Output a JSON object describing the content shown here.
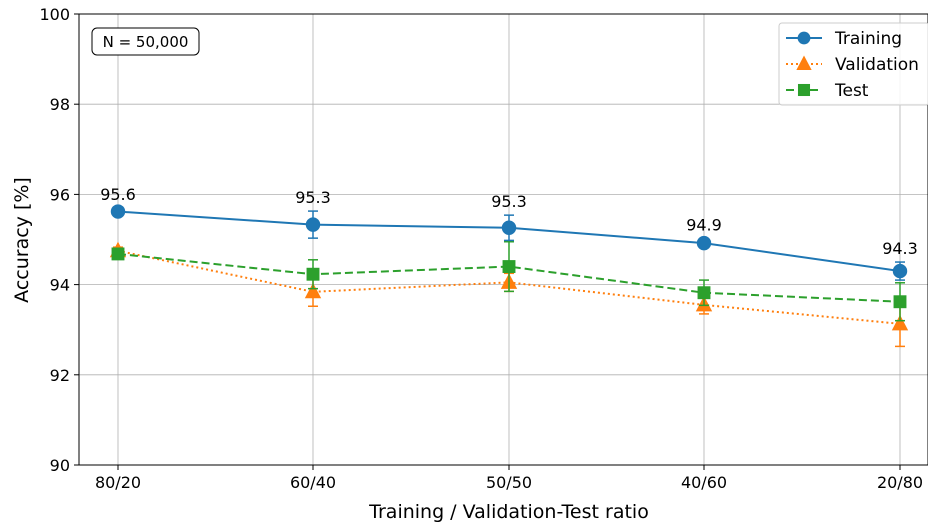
{
  "chart_data": {
    "type": "line",
    "xlabel": "Training / Validation-Test ratio",
    "ylabel": "Accuracy [%]",
    "ylim": [
      90,
      100
    ],
    "yticks": [
      90,
      92,
      94,
      96,
      98,
      100
    ],
    "categories": [
      "80/20",
      "60/40",
      "50/50",
      "40/60",
      "20/80"
    ],
    "grid": true,
    "legend_position": "top-right",
    "annotation": "N = 50,000",
    "series": [
      {
        "name": "Training",
        "color": "#1f77b4",
        "marker": "circle",
        "line_style": "solid",
        "values": [
          95.62,
          95.33,
          95.26,
          94.92,
          94.3
        ],
        "error": [
          0.08,
          0.3,
          0.28,
          0.1,
          0.2
        ],
        "labels": [
          "95.6",
          "95.3",
          "95.3",
          "94.9",
          "94.3"
        ]
      },
      {
        "name": "Validation",
        "color": "#ff7f0e",
        "marker": "triangle",
        "line_style": "dotted",
        "values": [
          94.75,
          93.84,
          94.05,
          93.55,
          93.13
        ],
        "error": [
          0.08,
          0.32,
          0.2,
          0.2,
          0.5
        ]
      },
      {
        "name": "Test",
        "color": "#2ca02c",
        "marker": "square",
        "line_style": "dashed",
        "values": [
          94.68,
          94.23,
          94.4,
          93.82,
          93.62
        ],
        "error": [
          0.05,
          0.32,
          0.55,
          0.28,
          0.42
        ]
      }
    ]
  }
}
